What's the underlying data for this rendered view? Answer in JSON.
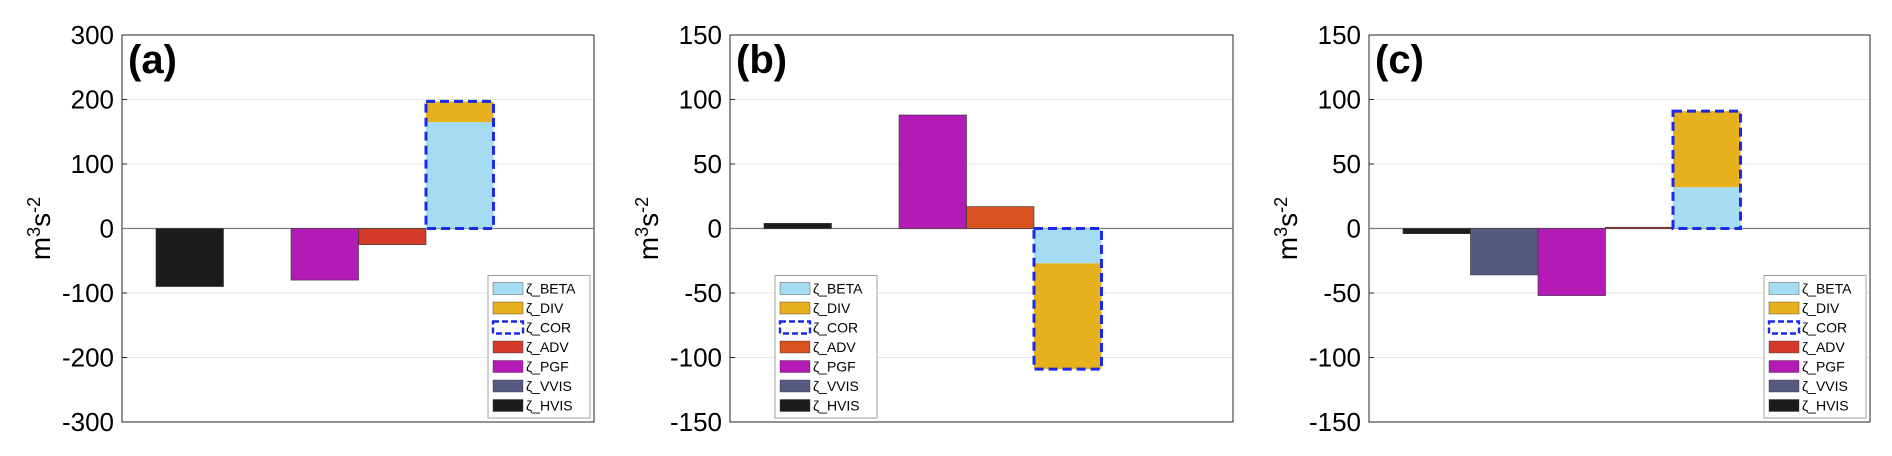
{
  "colors": {
    "BETA": "#a6dcf2",
    "DIV": "#e6b11c",
    "COR": "#1a2ae6",
    "ADV": "#d43a2a",
    "ADV_b": "#d8511f",
    "PGF": "#b41ab6",
    "VVIS": "#565a80",
    "HVIS": "#1c1c1c",
    "grid": "#e6e6e6",
    "axis": "#262626"
  },
  "chart_data": [
    {
      "type": "bar",
      "panel_label": "(a)",
      "ylabel_base": "m",
      "ylabel_sup1": "3",
      "ylabel_mid": "s",
      "ylabel_sup2": "-2",
      "ylim": [
        -300,
        300
      ],
      "yticks": [
        -300,
        -200,
        -100,
        0,
        100,
        200,
        300
      ],
      "ytick_labels": [
        "-300",
        "-200",
        "-100",
        "0",
        "100",
        "200",
        "300"
      ],
      "grid": true,
      "legend_placement": "bottom-right",
      "bars": [
        {
          "term": "HVIS",
          "slot": 0,
          "value": -90
        },
        {
          "term": "PGF",
          "slot": 2,
          "value": -80
        },
        {
          "term": "ADV",
          "slot": 3,
          "value": -25
        },
        {
          "term": "COR",
          "slot": 4,
          "value": 197,
          "stack": [
            {
              "term": "BETA",
              "value": 165
            },
            {
              "term": "DIV",
              "value": 32
            }
          ]
        }
      ],
      "legend": [
        "ζ_BETA",
        "ζ_DIV",
        "ζ_COR",
        "ζ_ADV",
        "ζ_PGF",
        "ζ_VVIS",
        "ζ_HVIS"
      ]
    },
    {
      "type": "bar",
      "panel_label": "(b)",
      "ylabel_base": "m",
      "ylabel_sup1": "3",
      "ylabel_mid": "s",
      "ylabel_sup2": "-2",
      "ylim": [
        -150,
        150
      ],
      "yticks": [
        -150,
        -100,
        -50,
        0,
        50,
        100,
        150
      ],
      "ytick_labels": [
        "-150",
        "-100",
        "-50",
        "0",
        "50",
        "100",
        "150"
      ],
      "grid": true,
      "legend_placement": "bottom-left",
      "bars": [
        {
          "term": "HVIS",
          "slot": 0,
          "value": 4
        },
        {
          "term": "PGF",
          "slot": 2,
          "value": 88
        },
        {
          "term": "ADV",
          "slot": 3,
          "value": 17
        },
        {
          "term": "COR",
          "slot": 4,
          "value": -109,
          "stack": [
            {
              "term": "BETA",
              "value": -27
            },
            {
              "term": "DIV",
              "value": -82
            }
          ]
        }
      ],
      "legend": [
        "ζ_BETA",
        "ζ_DIV",
        "ζ_COR",
        "ζ_ADV",
        "ζ_PGF",
        "ζ_VVIS",
        "ζ_HVIS"
      ]
    },
    {
      "type": "bar",
      "panel_label": "(c)",
      "ylabel_base": "m",
      "ylabel_sup1": "3",
      "ylabel_mid": "s",
      "ylabel_sup2": "-2",
      "ylim": [
        -150,
        150
      ],
      "yticks": [
        -150,
        -100,
        -50,
        0,
        50,
        100,
        150
      ],
      "ytick_labels": [
        "-150",
        "-100",
        "-50",
        "0",
        "50",
        "100",
        "150"
      ],
      "grid": true,
      "legend_placement": "bottom-right",
      "bars": [
        {
          "term": "HVIS",
          "slot": 0,
          "value": -4
        },
        {
          "term": "VVIS",
          "slot": 1,
          "value": -36
        },
        {
          "term": "PGF",
          "slot": 2,
          "value": -52
        },
        {
          "term": "ADV",
          "slot": 3,
          "value": 1
        },
        {
          "term": "COR",
          "slot": 4,
          "value": 91,
          "stack": [
            {
              "term": "BETA",
              "value": 32
            },
            {
              "term": "DIV",
              "value": 59
            }
          ]
        }
      ],
      "legend": [
        "ζ_BETA",
        "ζ_DIV",
        "ζ_COR",
        "ζ_ADV",
        "ζ_PGF",
        "ζ_VVIS",
        "ζ_HVIS"
      ]
    }
  ]
}
